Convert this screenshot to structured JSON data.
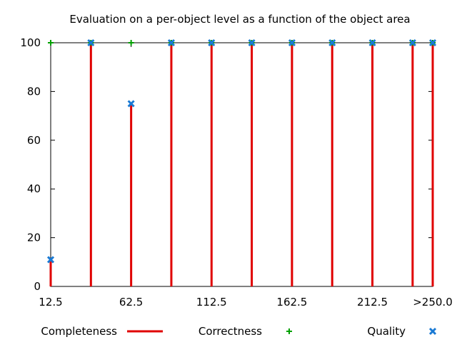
{
  "chart_data": {
    "type": "bar",
    "title": "Evaluation on a per-object level as a function of the object area",
    "xlabel": "",
    "ylabel": "",
    "ylim": [
      0,
      100
    ],
    "x": [
      12.5,
      37.5,
      62.5,
      87.5,
      112.5,
      137.5,
      162.5,
      187.5,
      212.5,
      237.5,
      250.0
    ],
    "x_tick_labels": [
      "12.5",
      "62.5",
      "112.5",
      "162.5",
      "212.5",
      ">250.0"
    ],
    "y_tick_labels": [
      "0",
      "20",
      "40",
      "60",
      "80",
      "100"
    ],
    "grid": false,
    "legend_position": "bottom",
    "series": [
      {
        "name": "Completeness",
        "style": "impulses",
        "color": "#e00000",
        "values": [
          11,
          100,
          75,
          100,
          100,
          100,
          100,
          100,
          100,
          100,
          100
        ]
      },
      {
        "name": "Correctness",
        "style": "points-plus",
        "color": "#00a000",
        "values": [
          100,
          100,
          100,
          100,
          100,
          100,
          100,
          100,
          100,
          100,
          100
        ]
      },
      {
        "name": "Quality",
        "style": "points-x",
        "color": "#1a7ad4",
        "values": [
          11,
          100,
          75,
          100,
          100,
          100,
          100,
          100,
          100,
          100,
          100
        ]
      }
    ]
  }
}
